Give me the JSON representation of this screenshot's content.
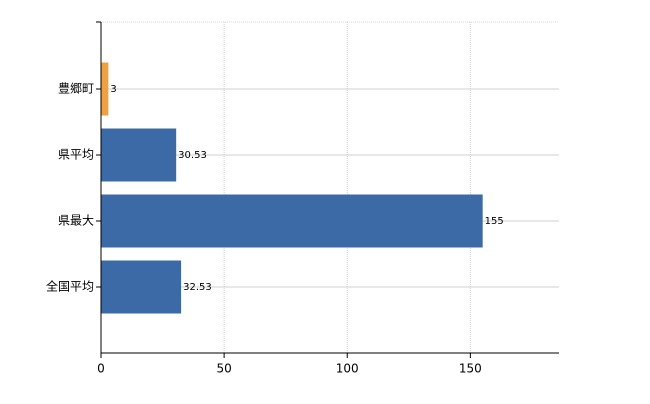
{
  "chart_data": {
    "type": "barh",
    "categories": [
      "豊郷町",
      "県平均",
      "県最大",
      "全国平均"
    ],
    "values": [
      3,
      30.53,
      155,
      32.53
    ],
    "colors": [
      "#f0a040",
      "#3b6aa7",
      "#3b6aa7",
      "#3b6aa7"
    ],
    "xlim": [
      0,
      186
    ],
    "xticks": [
      0,
      50,
      100,
      150
    ],
    "grid": true
  }
}
